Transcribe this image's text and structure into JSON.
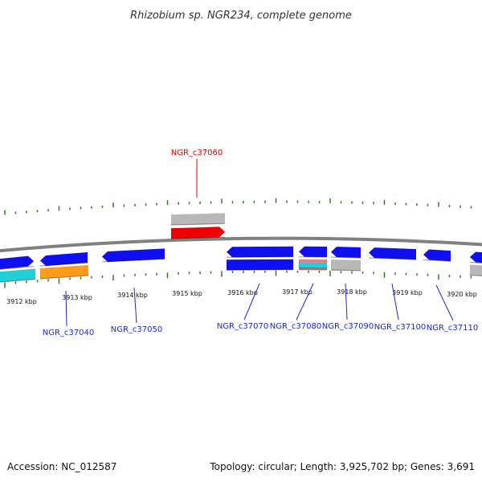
{
  "title": "Rhizobium sp. NGR234, complete genome",
  "footer": {
    "accession": "Accession: NC_012587",
    "summary": "Topology: circular; Length: 3,925,702 bp; Genes: 3,691"
  },
  "colors": {
    "backbone": "#808080",
    "tick": "#2e7d1e",
    "label_blue": "#1a2acc",
    "label_red": "#dd0000",
    "cds_blue": "#1010ee",
    "cds_red": "#ee0000",
    "gene_gray": "#b8b8b8",
    "gene_cyan": "#22cfd6",
    "gene_orange": "#ff9a1a",
    "gene_pink": "#ee7a8a"
  },
  "scale": {
    "units": "kbp",
    "labels": [
      "3912 kbp",
      "3913 kbp",
      "3914 kbp",
      "3915 kbp",
      "3916 kbp",
      "3917 kbp",
      "3918 kbp",
      "3919 kbp",
      "3920 kbp"
    ]
  },
  "labels": [
    {
      "text": "NGR_c37060",
      "color": "label_red"
    },
    {
      "text": "NGR_c37040",
      "color": "label_blue"
    },
    {
      "text": "NGR_c37050",
      "color": "label_blue"
    },
    {
      "text": "NGR_c37070",
      "color": "label_blue"
    },
    {
      "text": "NGR_c37080",
      "color": "label_blue"
    },
    {
      "text": "NGR_c37090",
      "color": "label_blue"
    },
    {
      "text": "NGR_c37100",
      "color": "label_blue"
    },
    {
      "text": "NGR_c37110",
      "color": "label_blue"
    }
  ]
}
